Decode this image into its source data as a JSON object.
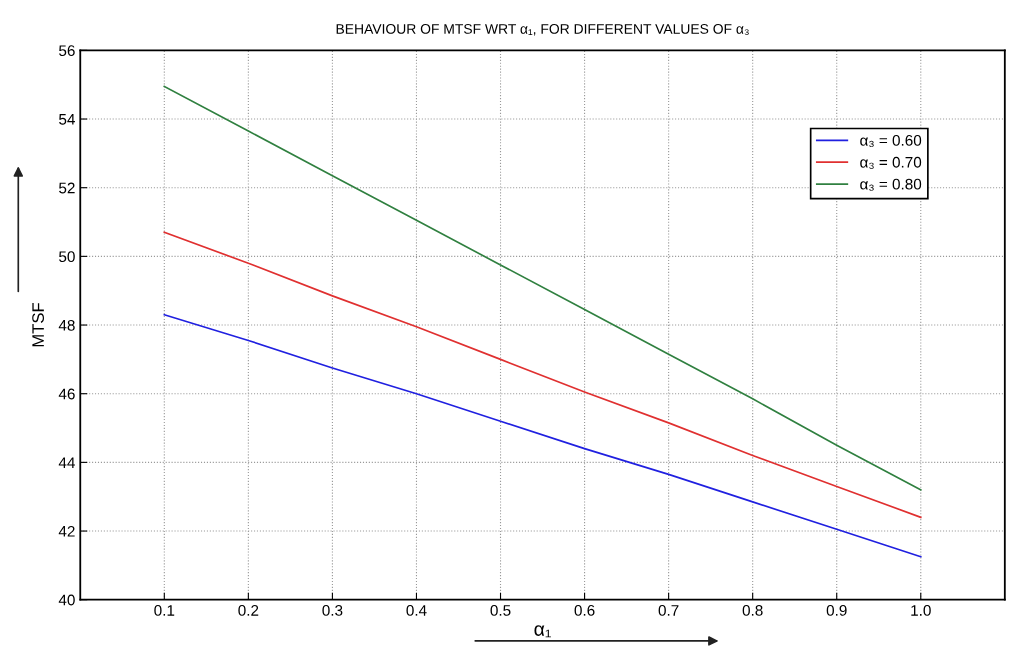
{
  "chart_data": {
    "type": "line",
    "title": "BEHAVIOUR OF MTSF WRT α₁, FOR DIFFERENT VALUES OF α₃",
    "xlabel": "α₁",
    "ylabel": "MTSF",
    "x": [
      0.1,
      0.2,
      0.3,
      0.4,
      0.5,
      0.6,
      0.7,
      0.8,
      0.9,
      1.0
    ],
    "series": [
      {
        "name": "α₃ = 0.60",
        "color": "#2020e0",
        "values": [
          48.3,
          47.55,
          46.75,
          46.0,
          45.2,
          44.4,
          43.65,
          42.85,
          42.05,
          41.25
        ]
      },
      {
        "name": "α₃ = 0.70",
        "color": "#e03030",
        "values": [
          50.7,
          49.8,
          48.85,
          47.95,
          47.0,
          46.05,
          45.15,
          44.2,
          43.3,
          42.4
        ]
      },
      {
        "name": "α₃ = 0.80",
        "color": "#308040",
        "values": [
          54.95,
          53.65,
          52.35,
          51.05,
          49.75,
          48.45,
          47.15,
          45.85,
          44.5,
          43.2
        ]
      }
    ],
    "xlim": [
      0,
      1.1
    ],
    "ylim": [
      40,
      56
    ],
    "xticks": [
      0.1,
      0.2,
      0.3,
      0.4,
      0.5,
      0.6,
      0.7,
      0.8,
      0.9,
      {
        "value": 1.0,
        "label": "1.0"
      }
    ],
    "yticks": [
      40,
      42,
      44,
      46,
      48,
      50,
      52,
      54,
      56
    ],
    "grid": true,
    "legend": "top right",
    "marker": "none",
    "line_style": "solid"
  }
}
